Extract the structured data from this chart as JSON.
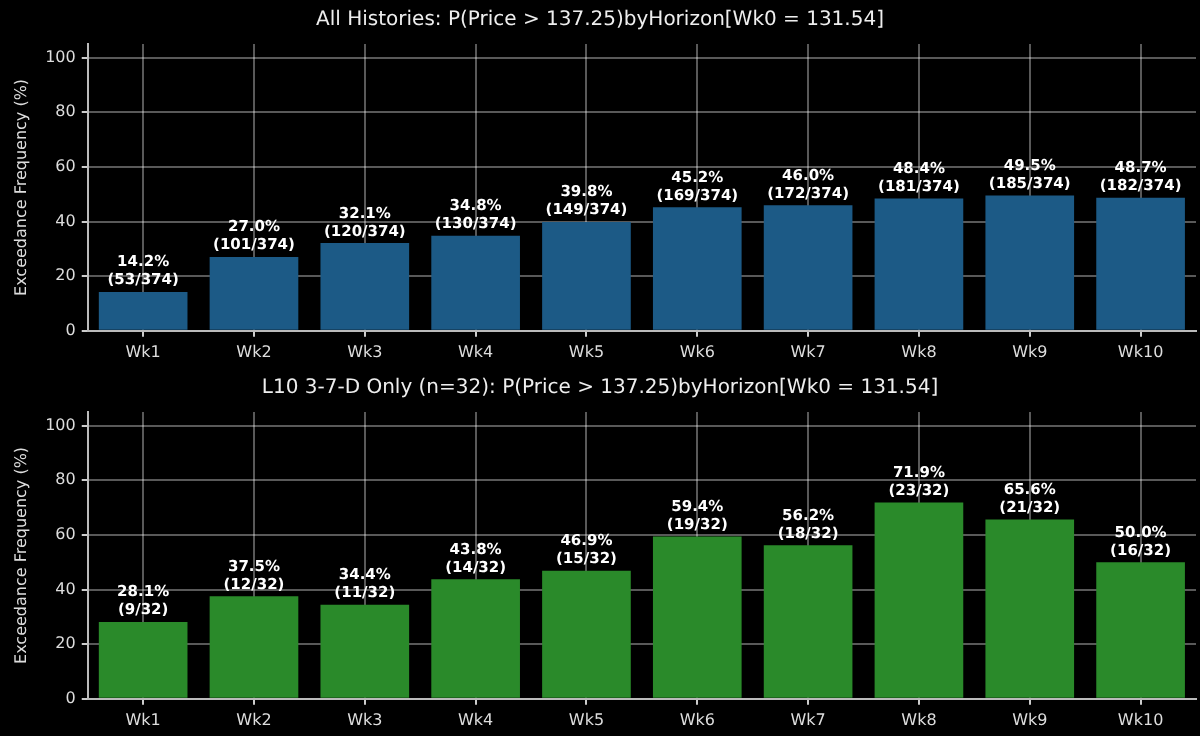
{
  "chart_data": [
    {
      "type": "bar",
      "title": "All Histories: P(Price > 137.25)byHorizon[Wk0 = 131.54]",
      "ylabel": "Exceedance Frequency (%)",
      "categories": [
        "Wk1",
        "Wk2",
        "Wk3",
        "Wk4",
        "Wk5",
        "Wk6",
        "Wk7",
        "Wk8",
        "Wk9",
        "Wk10"
      ],
      "values": [
        14.2,
        27.0,
        32.1,
        34.8,
        39.8,
        45.2,
        46.0,
        48.4,
        49.5,
        48.7
      ],
      "value_labels": [
        "14.2%\n(53/374)",
        "27.0%\n(101/374)",
        "32.1%\n(120/374)",
        "34.8%\n(130/374)",
        "39.8%\n(149/374)",
        "45.2%\n(169/374)",
        "46.0%\n(172/374)",
        "48.4%\n(181/374)",
        "49.5%\n(185/374)",
        "48.7%\n(182/374)"
      ],
      "color": "#1c5a86",
      "ylim": [
        0,
        105
      ],
      "yticks": [
        0,
        20,
        40,
        60,
        80,
        100
      ],
      "grid": true
    },
    {
      "type": "bar",
      "title": "L10 3-7-D Only (n=32): P(Price > 137.25)byHorizon[Wk0 = 131.54]",
      "ylabel": "Exceedance Frequency (%)",
      "categories": [
        "Wk1",
        "Wk2",
        "Wk3",
        "Wk4",
        "Wk5",
        "Wk6",
        "Wk7",
        "Wk8",
        "Wk9",
        "Wk10"
      ],
      "values": [
        28.1,
        37.5,
        34.4,
        43.8,
        46.9,
        59.4,
        56.2,
        71.9,
        65.6,
        50.0
      ],
      "value_labels": [
        "28.1%\n(9/32)",
        "37.5%\n(12/32)",
        "34.4%\n(11/32)",
        "43.8%\n(14/32)",
        "46.9%\n(15/32)",
        "59.4%\n(19/32)",
        "56.2%\n(18/32)",
        "71.9%\n(23/32)",
        "65.6%\n(21/32)",
        "50.0%\n(16/32)"
      ],
      "color": "#2a8a2a",
      "ylim": [
        0,
        105
      ],
      "yticks": [
        0,
        20,
        40,
        60,
        80,
        100
      ],
      "grid": true
    }
  ]
}
